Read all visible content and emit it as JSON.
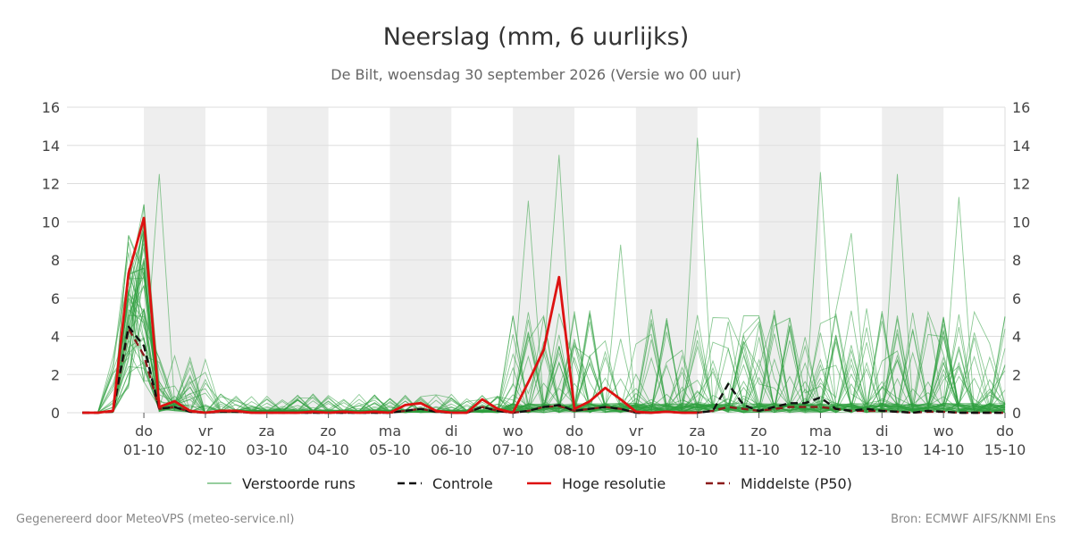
{
  "chart_data": {
    "type": "line",
    "title": "Neerslag (mm, 6 uurlijks)",
    "subtitle": "De Bilt, woensdag 30 september 2026 (Versie wo 00 uur)",
    "ylim": [
      0,
      16
    ],
    "y_ticks": [
      0,
      2,
      4,
      6,
      8,
      10,
      12,
      14,
      16
    ],
    "grid": true,
    "x_range_days": [
      -1.25,
      14.0
    ],
    "x_ticks": [
      {
        "day": "do",
        "date": "01-10"
      },
      {
        "day": "vr",
        "date": "02-10"
      },
      {
        "day": "za",
        "date": "03-10"
      },
      {
        "day": "zo",
        "date": "04-10"
      },
      {
        "day": "ma",
        "date": "05-10"
      },
      {
        "day": "di",
        "date": "06-10"
      },
      {
        "day": "wo",
        "date": "07-10"
      },
      {
        "day": "do",
        "date": "08-10"
      },
      {
        "day": "vr",
        "date": "09-10"
      },
      {
        "day": "za",
        "date": "10-10"
      },
      {
        "day": "zo",
        "date": "11-10"
      },
      {
        "day": "ma",
        "date": "12-10"
      },
      {
        "day": "di",
        "date": "13-10"
      },
      {
        "day": "wo",
        "date": "14-10"
      },
      {
        "day": "do",
        "date": "15-10"
      }
    ],
    "shaded_days": [
      "01-10",
      "03-10",
      "05-10",
      "07-10",
      "09-10",
      "11-10",
      "13-10"
    ],
    "legend_position": "bottom",
    "series": [
      {
        "name": "Hoge resolutie",
        "color": "#dd1111",
        "style": "solid",
        "x": [
          -1.0,
          -0.75,
          -0.5,
          -0.25,
          0.0,
          0.25,
          0.5,
          0.75,
          1.0,
          1.25,
          1.5,
          1.75,
          2.0,
          2.25,
          2.5,
          2.75,
          3.0,
          3.25,
          3.5,
          3.75,
          4.0,
          4.25,
          4.5,
          4.75,
          5.0,
          5.25,
          5.5,
          5.75,
          6.0,
          6.25,
          6.5,
          6.75,
          7.0,
          7.25,
          7.5,
          7.75,
          8.0,
          8.25,
          8.5,
          8.75,
          9.0
        ],
        "y": [
          0,
          0,
          0.1,
          7.3,
          10.2,
          0.3,
          0.6,
          0.1,
          0,
          0.1,
          0.1,
          0,
          0,
          0,
          0,
          0.05,
          0,
          0.05,
          0,
          0.05,
          0,
          0.4,
          0.5,
          0.1,
          0,
          0,
          0.7,
          0.2,
          0,
          1.6,
          3.3,
          7.1,
          0.2,
          0.6,
          1.3,
          0.7,
          0.05,
          0,
          0.05,
          0,
          0
        ]
      },
      {
        "name": "Controle",
        "color": "#111111",
        "style": "dashed",
        "x": [
          -1.0,
          -0.75,
          -0.5,
          -0.25,
          0.0,
          0.25,
          0.5,
          0.75,
          1.0,
          1.25,
          1.5,
          1.75,
          2.0,
          2.25,
          2.5,
          2.75,
          3.0,
          3.25,
          3.5,
          3.75,
          4.0,
          4.25,
          4.5,
          4.75,
          5.0,
          5.25,
          5.5,
          5.75,
          6.0,
          6.25,
          6.5,
          6.75,
          7.0,
          7.25,
          7.5,
          7.75,
          8.0,
          8.25,
          8.5,
          8.75,
          9.0,
          9.25,
          9.5,
          9.75,
          10.0,
          10.25,
          10.5,
          10.75,
          11.0,
          11.25,
          11.5,
          11.75,
          12.0,
          12.25,
          12.5,
          12.75,
          13.0,
          13.25,
          13.5,
          13.75,
          14.0
        ],
        "y": [
          0,
          0,
          0.1,
          4.5,
          3.5,
          0.2,
          0.3,
          0.05,
          0,
          0.05,
          0.05,
          0,
          0,
          0,
          0,
          0,
          0,
          0,
          0,
          0,
          0,
          0.1,
          0.2,
          0.05,
          0,
          0,
          0.3,
          0.1,
          0,
          0.1,
          0.3,
          0.4,
          0.1,
          0.2,
          0.3,
          0.2,
          0,
          0,
          0.05,
          0,
          0,
          0.1,
          1.5,
          0.4,
          0.1,
          0.3,
          0.5,
          0.5,
          0.8,
          0.2,
          0.1,
          0.2,
          0.1,
          0.05,
          0,
          0.1,
          0.05,
          0,
          0,
          0,
          0
        ]
      },
      {
        "name": "Middelste (P50)",
        "color": "#8b1a1a",
        "style": "dashed",
        "x": [
          -1.0,
          -0.75,
          -0.5,
          -0.25,
          0.0,
          0.25,
          0.5,
          0.75,
          1.0,
          1.25,
          1.5,
          1.75,
          2.0,
          2.25,
          2.5,
          2.75,
          3.0,
          3.25,
          3.5,
          3.75,
          4.0,
          4.25,
          4.5,
          4.75,
          5.0,
          5.25,
          5.5,
          5.75,
          6.0,
          6.25,
          6.5,
          6.75,
          7.0,
          7.25,
          7.5,
          7.75,
          8.0,
          8.25,
          8.5,
          8.75,
          9.0,
          9.25,
          9.5,
          9.75,
          10.0,
          10.25,
          10.5,
          10.75,
          11.0,
          11.25,
          11.5,
          11.75,
          12.0,
          12.25,
          12.5,
          12.75,
          13.0,
          13.25,
          13.5,
          13.75,
          14.0
        ],
        "y": [
          0,
          0,
          0.05,
          4.4,
          3.0,
          0.2,
          0.3,
          0.05,
          0,
          0.05,
          0.05,
          0,
          0,
          0,
          0,
          0,
          0,
          0,
          0,
          0,
          0,
          0.1,
          0.2,
          0.05,
          0,
          0,
          0.3,
          0.1,
          0,
          0.1,
          0.3,
          0.35,
          0.1,
          0.2,
          0.3,
          0.2,
          0,
          0,
          0.05,
          0,
          0,
          0.1,
          0.3,
          0.2,
          0.1,
          0.2,
          0.3,
          0.3,
          0.3,
          0.2,
          0.1,
          0.1,
          0.1,
          0.05,
          0,
          0.05,
          0.05,
          0,
          0,
          0,
          0
        ]
      }
    ],
    "ensemble": {
      "name": "Verstoorde runs",
      "color": "#2e9e3e",
      "members_count": 50,
      "peaks": [
        {
          "x": 0.25,
          "y": 12.5
        },
        {
          "x": 0.0,
          "y": 10.9
        },
        {
          "x": 6.75,
          "y": 13.5
        },
        {
          "x": 6.25,
          "y": 11.1
        },
        {
          "x": 9.0,
          "y": 14.4
        },
        {
          "x": 11.0,
          "y": 12.6
        },
        {
          "x": 12.25,
          "y": 12.5
        },
        {
          "x": 13.25,
          "y": 11.3
        },
        {
          "x": 11.5,
          "y": 9.4
        },
        {
          "x": 7.75,
          "y": 8.8
        }
      ]
    },
    "legend": [
      {
        "label": "Verstoorde runs",
        "color": "#2e9e3e",
        "style": "thin"
      },
      {
        "label": "Controle",
        "color": "#111111",
        "style": "dashed"
      },
      {
        "label": "Hoge resolutie",
        "color": "#dd1111",
        "style": "solid"
      },
      {
        "label": "Middelste (P50)",
        "color": "#8b1a1a",
        "style": "dashed"
      }
    ]
  },
  "footer": {
    "left": "Gegenereerd door MeteoVPS (meteo-service.nl)",
    "right": "Bron: ECMWF AIFS/KNMI Ens"
  }
}
